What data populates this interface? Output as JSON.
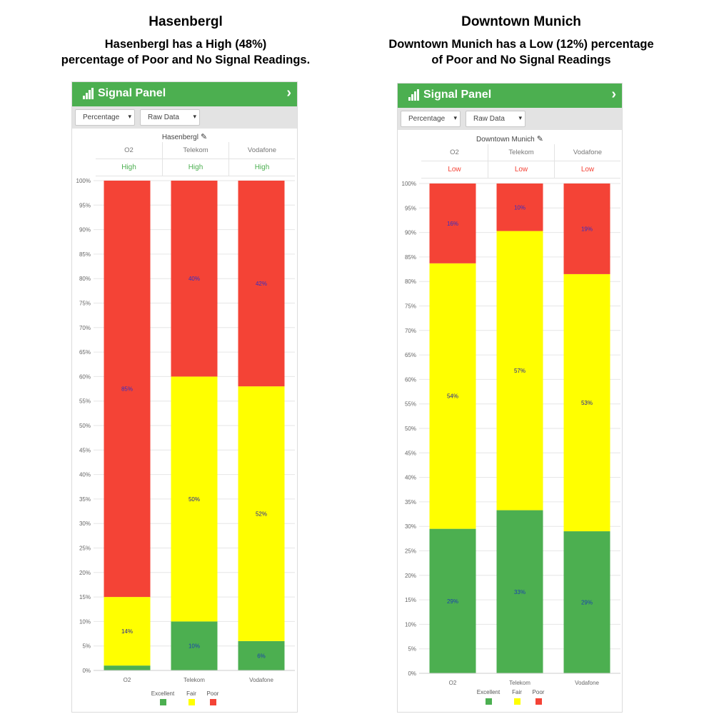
{
  "headings": [
    {
      "title": "Hasenbergl",
      "caption_line1": "Hasenbergl has a High (48%)",
      "caption_line2": "percentage of Poor and No Signal Readings."
    },
    {
      "title": "Downtown Munich",
      "caption_line1": "Downtown Munich has a Low (12%) percentage",
      "caption_line2": "of Poor and No Signal Readings"
    }
  ],
  "panels": [
    {
      "title": "Signal Panel",
      "header_icon": "signal-bars-icon",
      "expand_icon": "chevron-right-icon",
      "select_metric": "Percentage",
      "select_view": "Raw Data",
      "location": "Hasenbergl",
      "columns": [
        "O2",
        "Telekom",
        "Vodafone"
      ],
      "ratings": [
        "High",
        "High",
        "High"
      ],
      "rating_color": "#4caf50",
      "legend": [
        "Excellent",
        "Fair",
        "Poor"
      ]
    },
    {
      "title": "Signal Panel",
      "header_icon": "signal-bars-icon",
      "expand_icon": "chevron-right-icon",
      "select_metric": "Percentage",
      "select_view": "Raw Data",
      "location": "Downtown Munich",
      "columns": [
        "O2",
        "Telekom",
        "Vodafone"
      ],
      "ratings": [
        "Low",
        "Low",
        "Low"
      ],
      "rating_color": "#f44336",
      "legend": [
        "Excellent",
        "Fair",
        "Poor"
      ]
    }
  ],
  "colors": {
    "excellent": "#4caf50",
    "fair": "#ffff00",
    "poor": "#f44336",
    "brand": "#4caf50"
  },
  "chart_data": [
    {
      "type": "bar",
      "stacked": true,
      "categories": [
        "O2",
        "Telekom",
        "Vodafone"
      ],
      "series": [
        {
          "name": "Excellent",
          "values": [
            1,
            10,
            6
          ],
          "labels": [
            "",
            "10%",
            "6%"
          ]
        },
        {
          "name": "Fair",
          "values": [
            14,
            50,
            52
          ],
          "labels": [
            "14%",
            "50%",
            "52%"
          ]
        },
        {
          "name": "Poor",
          "values": [
            85,
            40,
            42
          ],
          "labels": [
            "85%",
            "40%",
            "42%"
          ]
        }
      ],
      "ylim": [
        0,
        100
      ],
      "yticks": [
        "0%",
        "5%",
        "10%",
        "15%",
        "20%",
        "25%",
        "30%",
        "35%",
        "40%",
        "45%",
        "50%",
        "55%",
        "60%",
        "65%",
        "70%",
        "75%",
        "80%",
        "85%",
        "90%",
        "95%",
        "100%"
      ],
      "grid": true,
      "legend_position": "bottom"
    },
    {
      "type": "bar",
      "stacked": true,
      "categories": [
        "O2",
        "Telekom",
        "Vodafone"
      ],
      "series": [
        {
          "name": "Excellent",
          "values": [
            29.5,
            33.3,
            29
          ],
          "labels": [
            "29%",
            "33%",
            "29%"
          ]
        },
        {
          "name": "Fair",
          "values": [
            54.2,
            57,
            52.5
          ],
          "labels": [
            "54%",
            "57%",
            "53%"
          ]
        },
        {
          "name": "Poor",
          "values": [
            16.3,
            9.7,
            18.5
          ],
          "labels": [
            "16%",
            "10%",
            "19%"
          ]
        }
      ],
      "ylim": [
        0,
        100
      ],
      "yticks": [
        "0%",
        "5%",
        "10%",
        "15%",
        "20%",
        "25%",
        "30%",
        "35%",
        "40%",
        "45%",
        "50%",
        "55%",
        "60%",
        "65%",
        "70%",
        "75%",
        "80%",
        "85%",
        "90%",
        "95%",
        "100%"
      ],
      "grid": true,
      "legend_position": "bottom"
    }
  ]
}
